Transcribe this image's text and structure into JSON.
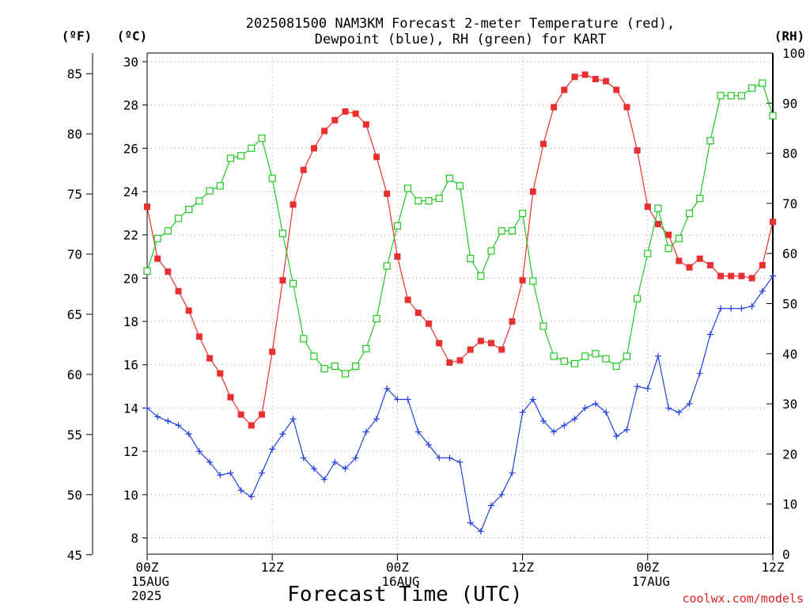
{
  "chart_data": {
    "type": "line",
    "title_lines": [
      "2025081500 NAM3KM Forecast 2-meter Temperature (red),",
      "Dewpoint (blue), RH (green) for KART"
    ],
    "xlabel": "Forecast Time (UTC)",
    "unit_labels": {
      "fahrenheit": "(ºF)",
      "celsius": "(ºC)",
      "rh": "(RH)"
    },
    "x_ticks": [
      {
        "hour": 0,
        "lines": [
          "00Z",
          "15AUG",
          "2025"
        ]
      },
      {
        "hour": 12,
        "lines": [
          "12Z"
        ]
      },
      {
        "hour": 24,
        "lines": [
          "00Z",
          "16AUG"
        ]
      },
      {
        "hour": 36,
        "lines": [
          "12Z"
        ]
      },
      {
        "hour": 48,
        "lines": [
          "00Z",
          "17AUG"
        ]
      },
      {
        "hour": 60,
        "lines": [
          "12Z"
        ]
      }
    ],
    "x_range_hours": [
      0,
      60
    ],
    "celsius_axis": {
      "range": [
        7.25,
        30.4
      ],
      "ticks": [
        8,
        10,
        12,
        14,
        16,
        18,
        20,
        22,
        24,
        26,
        28,
        30
      ]
    },
    "fahrenheit_axis": {
      "range": [
        45.05,
        86.72
      ],
      "ticks": [
        45,
        50,
        55,
        60,
        65,
        70,
        75,
        80,
        85
      ]
    },
    "rh_axis": {
      "range": [
        0,
        100
      ],
      "ticks": [
        0,
        10,
        20,
        30,
        40,
        50,
        60,
        70,
        80,
        90,
        100
      ]
    },
    "series": [
      {
        "name": "Temperature",
        "axis": "celsius",
        "color": "#e83030",
        "marker": "filled-square",
        "values": [
          23.3,
          20.9,
          20.3,
          19.4,
          18.5,
          17.3,
          16.3,
          15.6,
          14.5,
          13.7,
          13.2,
          13.7,
          16.6,
          19.9,
          23.4,
          25.0,
          26.0,
          26.8,
          27.3,
          27.7,
          27.6,
          27.1,
          25.6,
          23.9,
          21.0,
          19.0,
          18.4,
          17.9,
          17.0,
          16.1,
          16.2,
          16.7,
          17.1,
          17.0,
          16.7,
          18.0,
          19.9,
          24.0,
          26.2,
          27.9,
          28.7,
          29.3,
          29.4,
          29.2,
          29.1,
          28.7,
          27.9,
          25.9,
          23.3,
          22.5,
          22.0,
          20.8,
          20.5,
          20.9,
          20.6,
          20.1,
          20.1,
          20.1,
          20.0,
          20.6,
          22.6
        ]
      },
      {
        "name": "Dewpoint",
        "axis": "celsius",
        "color": "#2040e0",
        "marker": "plus",
        "values": [
          14.0,
          13.6,
          13.4,
          13.2,
          12.8,
          12.0,
          11.5,
          10.9,
          11.0,
          10.2,
          9.9,
          11.0,
          12.1,
          12.8,
          13.5,
          11.7,
          11.2,
          10.7,
          11.5,
          11.2,
          11.7,
          12.9,
          13.5,
          14.9,
          14.4,
          14.4,
          12.9,
          12.3,
          11.7,
          11.7,
          11.5,
          8.7,
          8.3,
          9.5,
          10.0,
          11.0,
          13.8,
          14.4,
          13.4,
          12.9,
          13.2,
          13.5,
          14.0,
          14.2,
          13.8,
          12.7,
          13.0,
          15.0,
          14.9,
          16.4,
          14.0,
          13.8,
          14.2,
          15.6,
          17.4,
          18.6,
          18.6,
          18.6,
          18.7,
          19.4,
          20.1
        ]
      },
      {
        "name": "RH",
        "axis": "rh",
        "color": "#20c820",
        "marker": "open-square",
        "values": [
          56.5,
          63.0,
          64.5,
          67.0,
          68.8,
          70.5,
          72.5,
          73.5,
          79.0,
          79.5,
          81.0,
          83.0,
          75.0,
          64.0,
          54.0,
          43.0,
          39.5,
          37.0,
          37.5,
          36.0,
          37.5,
          41.0,
          47.0,
          57.5,
          65.5,
          73.0,
          70.5,
          70.5,
          71.0,
          75.0,
          73.5,
          59.0,
          55.5,
          60.5,
          64.5,
          64.5,
          68.0,
          54.5,
          45.5,
          39.5,
          38.5,
          38.0,
          39.5,
          40.0,
          39.0,
          37.5,
          39.5,
          51.0,
          60.0,
          69.0,
          61.0,
          63.0,
          68.0,
          71.0,
          82.5,
          91.5,
          91.5,
          91.5,
          93.0,
          94.0,
          87.5
        ]
      }
    ]
  },
  "credit": "coolwx.com/models"
}
